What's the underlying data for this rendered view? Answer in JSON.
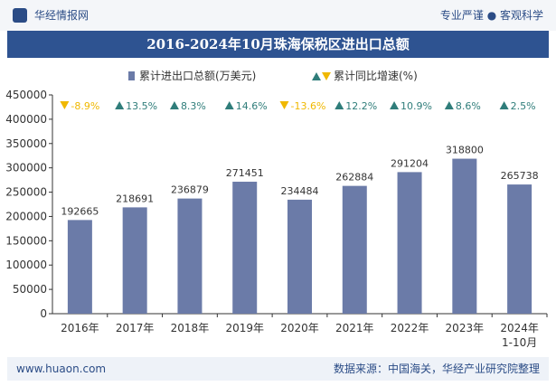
{
  "header": {
    "site_name": "华经情报网",
    "slogan": "专业严谨 ● 客观科学"
  },
  "footer": {
    "url": "www.huaon.com",
    "source": "数据来源：中国海关，华经产业研究院整理"
  },
  "colors": {
    "bar": "#6b7ba8",
    "up": "#2f7d7a",
    "down": "#f0b800",
    "title_band": "#2e5391"
  },
  "chart_data": {
    "type": "bar",
    "title": "2016-2024年10月珠海保税区进出口总额",
    "categories": [
      "2016年",
      "2017年",
      "2018年",
      "2019年",
      "2020年",
      "2021年",
      "2022年",
      "2023年",
      "2024年1-10月"
    ],
    "series": [
      {
        "name": "累计进出口总额(万美元)",
        "values": [
          192665,
          218691,
          236879,
          271451,
          234484,
          262884,
          291204,
          318800,
          265738
        ],
        "labels": [
          "192665",
          "218691",
          "236879",
          "271451",
          "234484",
          "262884",
          "291204",
          "318800",
          "265738"
        ]
      },
      {
        "name": "累计同比增速(%)",
        "values": [
          -8.9,
          13.5,
          8.3,
          14.6,
          -13.6,
          12.2,
          10.9,
          8.6,
          2.5
        ],
        "labels": [
          "-8.9%",
          "13.5%",
          "8.3%",
          "14.6%",
          "-13.6%",
          "12.2%",
          "10.9%",
          "8.6%",
          "2.5%"
        ]
      }
    ],
    "ylim": [
      0,
      450000
    ],
    "yticks": [
      0,
      50000,
      100000,
      150000,
      200000,
      250000,
      300000,
      350000,
      400000,
      450000
    ],
    "yticklabels": [
      "0",
      "50000",
      "100000",
      "150000",
      "200000",
      "250000",
      "300000",
      "350000",
      "400000",
      "450000"
    ],
    "legend_position": "top-center",
    "grid": false
  }
}
